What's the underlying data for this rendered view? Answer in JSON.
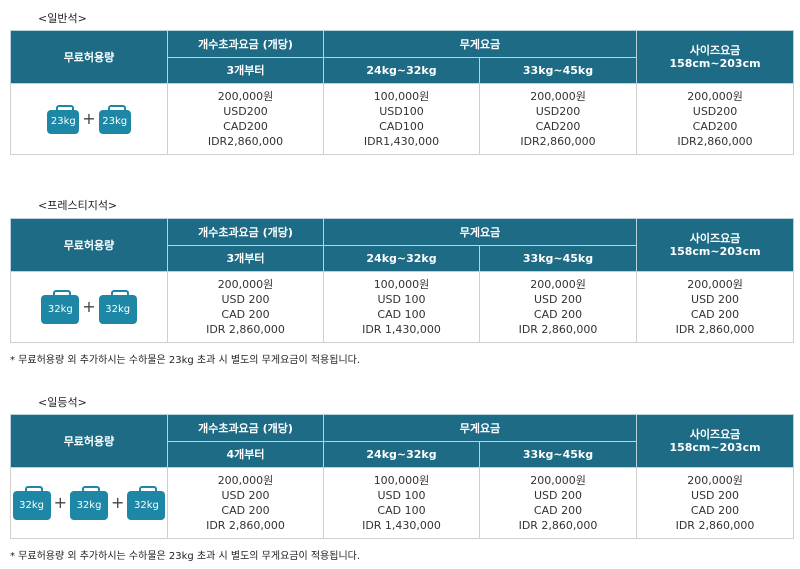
{
  "sections": [
    {
      "title": "<일반석>",
      "headers": {
        "free": "무료허용량",
        "count_fee": "개수초과요금 (개당)",
        "weight_fee": "무게요금",
        "size_fee": "사이즈요금",
        "size_range": "158cm~203cm",
        "count_sub": "3개부터",
        "w1": "24kg~32kg",
        "w2": "33kg~45kg"
      },
      "bags": [
        "23kg",
        "23kg"
      ],
      "count_col": [
        "200,000원",
        "USD200",
        "CAD200",
        "IDR2,860,000"
      ],
      "w1_col": [
        "100,000원",
        "USD100",
        "CAD100",
        "IDR1,430,000"
      ],
      "w2_col": [
        "200,000원",
        "USD200",
        "CAD200",
        "IDR2,860,000"
      ],
      "size_col": [
        "200,000원",
        "USD200",
        "CAD200",
        "IDR2,860,000"
      ],
      "note": ""
    },
    {
      "title": "<프레스티지석>",
      "headers": {
        "free": "무료허용량",
        "count_fee": "개수초과요금 (개당)",
        "weight_fee": "무게요금",
        "size_fee": "사이즈요금",
        "size_range": "158cm~203cm",
        "count_sub": "3개부터",
        "w1": "24kg~32kg",
        "w2": "33kg~45kg"
      },
      "bags": [
        "32kg",
        "32kg"
      ],
      "count_col": [
        "200,000원",
        "USD 200",
        "CAD 200",
        "IDR 2,860,000"
      ],
      "w1_col": [
        "100,000원",
        "USD 100",
        "CAD 100",
        "IDR 1,430,000"
      ],
      "w2_col": [
        "200,000원",
        "USD 200",
        "CAD 200",
        "IDR 2,860,000"
      ],
      "size_col": [
        "200,000원",
        "USD 200",
        "CAD 200",
        "IDR 2,860,000"
      ],
      "note": "* 무료허용량 외 추가하시는 수하물은 23kg 초과 시 별도의 무게요금이 적용됩니다."
    },
    {
      "title": "<일등석>",
      "headers": {
        "free": "무료허용량",
        "count_fee": "개수초과요금 (개당)",
        "weight_fee": "무게요금",
        "size_fee": "사이즈요금",
        "size_range": "158cm~203cm",
        "count_sub": "4개부터",
        "w1": "24kg~32kg",
        "w2": "33kg~45kg"
      },
      "bags": [
        "32kg",
        "32kg",
        "32kg"
      ],
      "count_col": [
        "200,000원",
        "USD 200",
        "CAD 200",
        "IDR 2,860,000"
      ],
      "w1_col": [
        "100,000원",
        "USD 100",
        "CAD 100",
        "IDR 1,430,000"
      ],
      "w2_col": [
        "200,000원",
        "USD 200",
        "CAD 200",
        "IDR 2,860,000"
      ],
      "size_col": [
        "200,000원",
        "USD 200",
        "CAD 200",
        "IDR 2,860,000"
      ],
      "note": "* 무료허용량 외 추가하시는 수하물은 23kg 초과 시 별도의 무게요금이 적용됩니다."
    }
  ],
  "plus_symbol": "+",
  "colors": {
    "header_bg": "#1e6b86",
    "bag": "#1d87a5"
  },
  "icons": {
    "bag": "suitcase-icon",
    "plus": "plus-icon"
  }
}
